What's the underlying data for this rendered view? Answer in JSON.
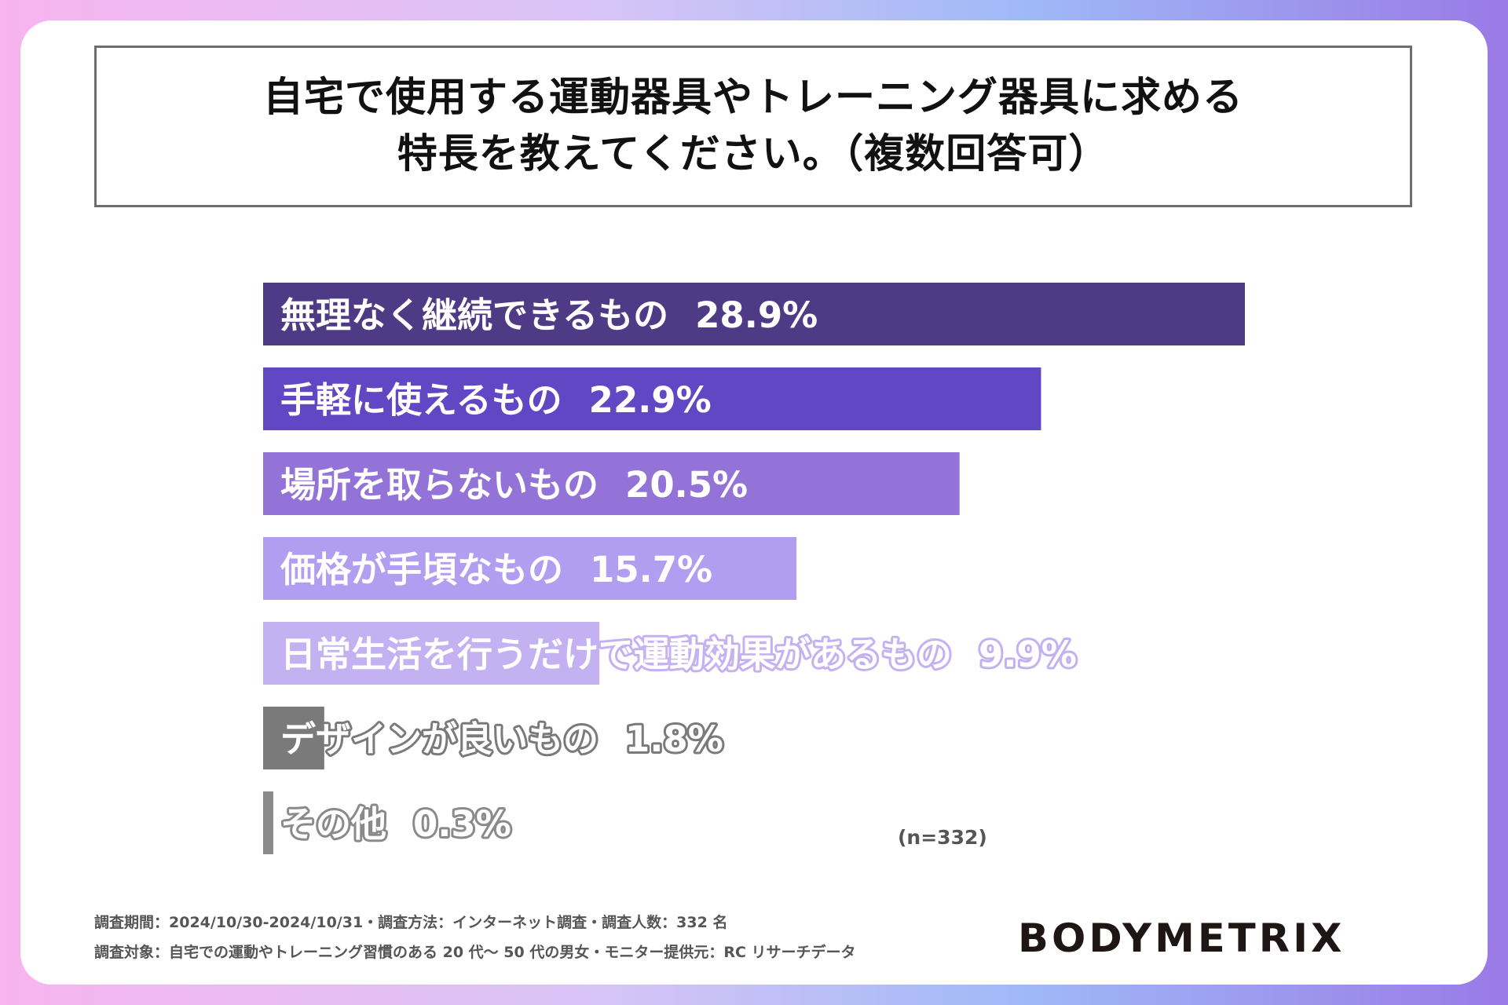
{
  "title": {
    "line1": "自宅で使用する運動器具やトレーニング器具に求める",
    "line2": "特長を教えてください。（複数回答可）"
  },
  "chart_data": {
    "type": "bar",
    "orientation": "horizontal",
    "categories": [
      "無理なく継続できるもの",
      "手軽に使えるもの",
      "場所を取らないもの",
      "価格が手頃なもの",
      "日常生活を行うだけで運動効果があるもの",
      "デザインが良いもの",
      "その他"
    ],
    "values": [
      28.9,
      22.9,
      20.5,
      15.7,
      9.9,
      1.8,
      0.3
    ],
    "labels": [
      "28.9%",
      "22.9%",
      "20.5%",
      "15.7%",
      "9.9%",
      "1.8%",
      "0.3%"
    ],
    "colors": [
      "#4f3a86",
      "#6247c4",
      "#9373d8",
      "#b29ef0",
      "#c4b1f2",
      "#7a7a7a",
      "#8a8a8a"
    ],
    "xlim": [
      0,
      28.9
    ],
    "note": "(n=332)"
  },
  "footer": {
    "line1": "調査期間：2024/10/30-2024/10/31・調査方法：インターネット調査・調査人数：332 名",
    "line2": "調査対象：自宅での運動やトレーニング習慣のある 20 代～ 50 代の男女・モニター提供元：RC リサーチデータ"
  },
  "brand": "BODYMETRIX"
}
